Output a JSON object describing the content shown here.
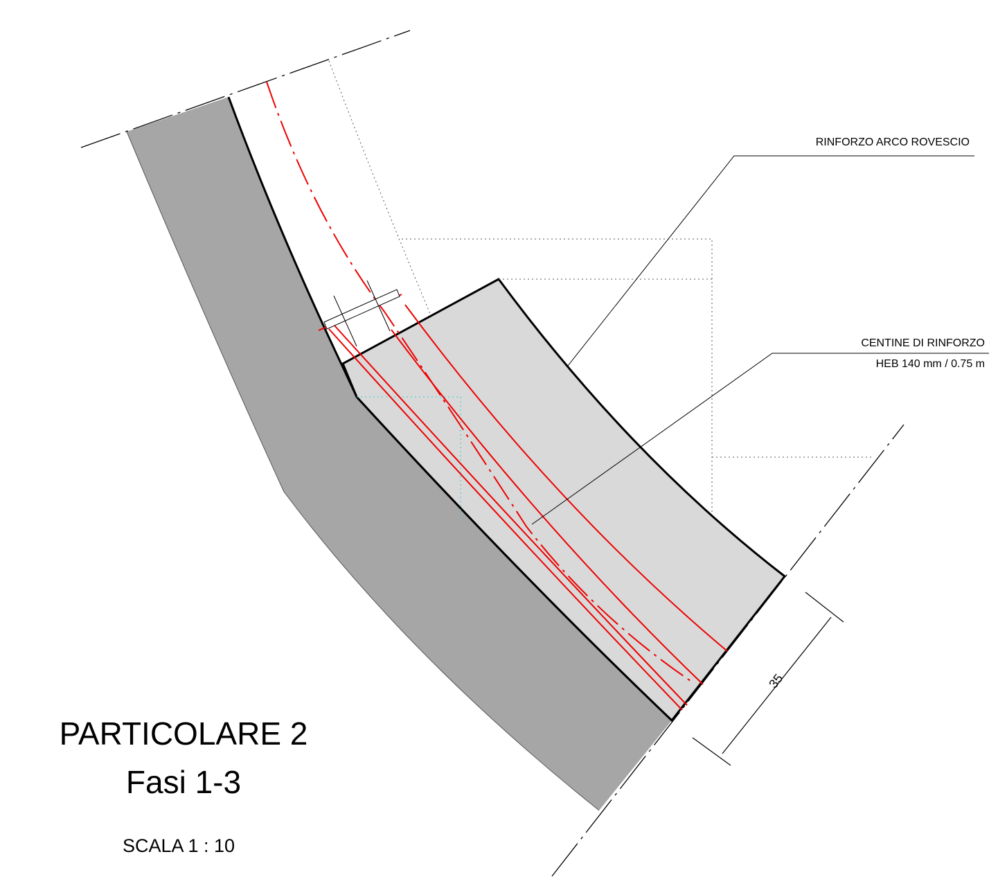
{
  "title": "PARTICOLARE 2",
  "subtitle": "Fasi 1-3",
  "scale": "SCALA 1 : 10",
  "callouts": [
    {
      "label": "RINFORZO ARCO ROVESCIO"
    },
    {
      "label": "CENTINE DI RINFORZO",
      "detail": "HEB 140 mm / 0.75 m"
    }
  ],
  "dimension": {
    "label": "35"
  }
}
